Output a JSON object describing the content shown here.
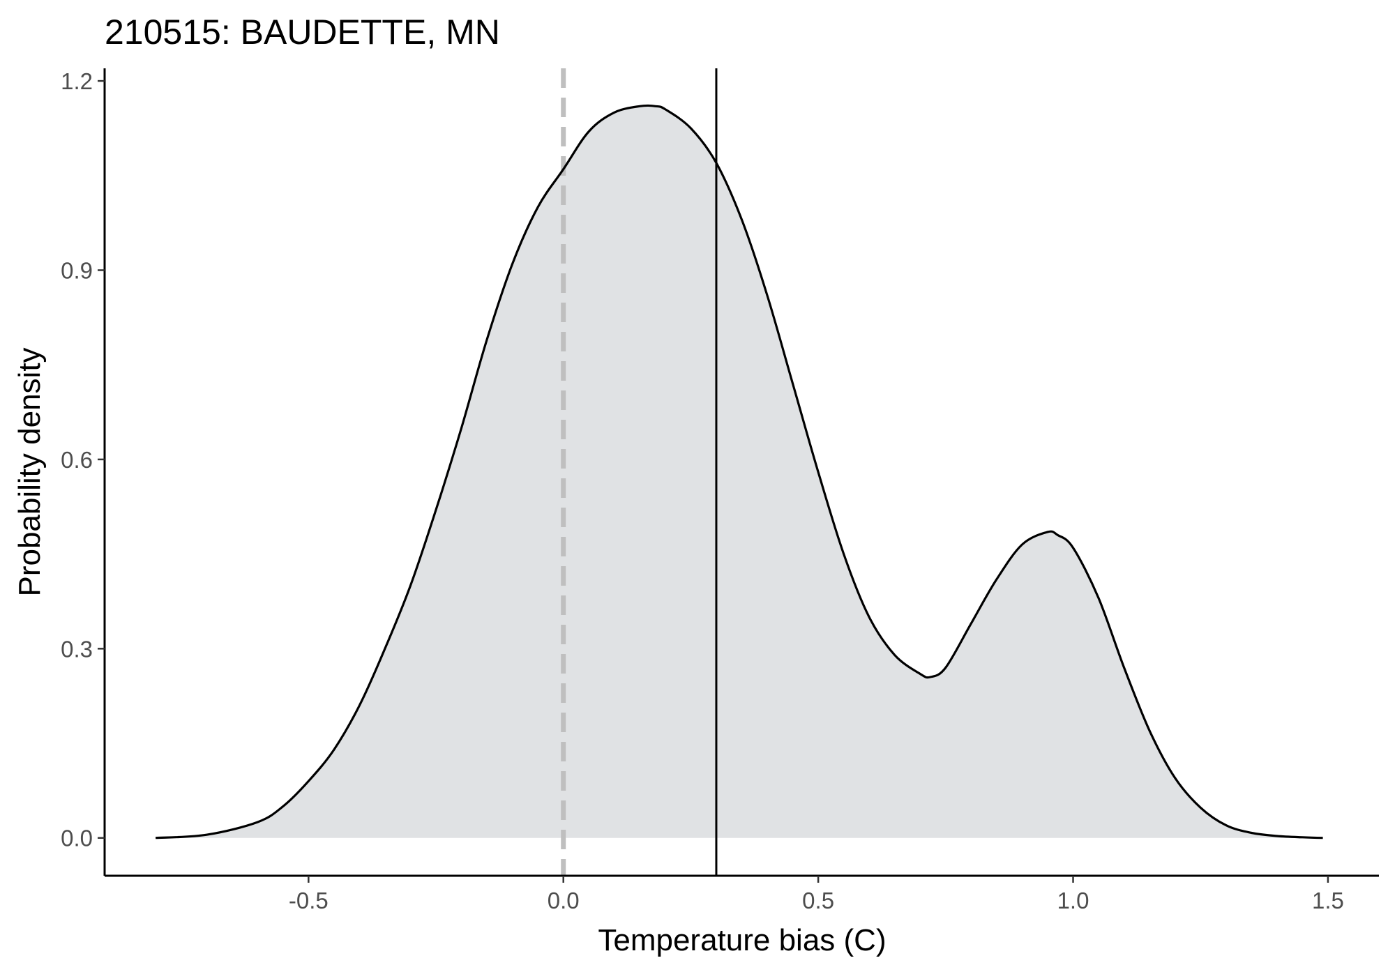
{
  "chart_data": {
    "type": "area",
    "title": "210515: BAUDETTE, MN",
    "xlabel": "Temperature bias (C)",
    "ylabel": "Probability density",
    "xlim": [
      -0.9,
      1.6
    ],
    "ylim": [
      -0.06,
      1.22
    ],
    "x_ticks": [
      -0.5,
      0.0,
      0.5,
      1.0,
      1.5
    ],
    "x_tick_labels": [
      "-0.5",
      "0.0",
      "0.5",
      "1.0",
      "1.5"
    ],
    "y_ticks": [
      0.0,
      0.3,
      0.6,
      0.9,
      1.2
    ],
    "y_tick_labels": [
      "0.0",
      "0.3",
      "0.6",
      "0.9",
      "1.2"
    ],
    "grid": false,
    "series": [
      {
        "x": [
          -0.8,
          -0.7,
          -0.6,
          -0.55,
          -0.5,
          -0.45,
          -0.4,
          -0.35,
          -0.3,
          -0.25,
          -0.2,
          -0.15,
          -0.1,
          -0.05,
          0.0,
          0.05,
          0.1,
          0.15,
          0.18,
          0.2,
          0.25,
          0.3,
          0.35,
          0.4,
          0.45,
          0.5,
          0.55,
          0.6,
          0.65,
          0.7,
          0.72,
          0.75,
          0.8,
          0.85,
          0.9,
          0.95,
          0.97,
          1.0,
          1.05,
          1.1,
          1.15,
          1.2,
          1.25,
          1.3,
          1.35,
          1.4,
          1.45,
          1.49
        ],
        "y": [
          0.0,
          0.005,
          0.025,
          0.05,
          0.09,
          0.14,
          0.21,
          0.3,
          0.4,
          0.52,
          0.65,
          0.79,
          0.91,
          1.0,
          1.06,
          1.12,
          1.15,
          1.16,
          1.16,
          1.155,
          1.125,
          1.07,
          0.98,
          0.86,
          0.72,
          0.58,
          0.45,
          0.35,
          0.29,
          0.26,
          0.255,
          0.27,
          0.34,
          0.41,
          0.465,
          0.485,
          0.48,
          0.46,
          0.38,
          0.27,
          0.17,
          0.095,
          0.048,
          0.02,
          0.008,
          0.003,
          0.001,
          0.0
        ],
        "fill": "#e0e2e4",
        "line_color": "#000000"
      }
    ],
    "reference_lines": [
      {
        "x": 0.0,
        "style": "dashed",
        "color": "#bfbfbf"
      },
      {
        "x": 0.3,
        "style": "solid",
        "color": "#000000"
      }
    ]
  }
}
